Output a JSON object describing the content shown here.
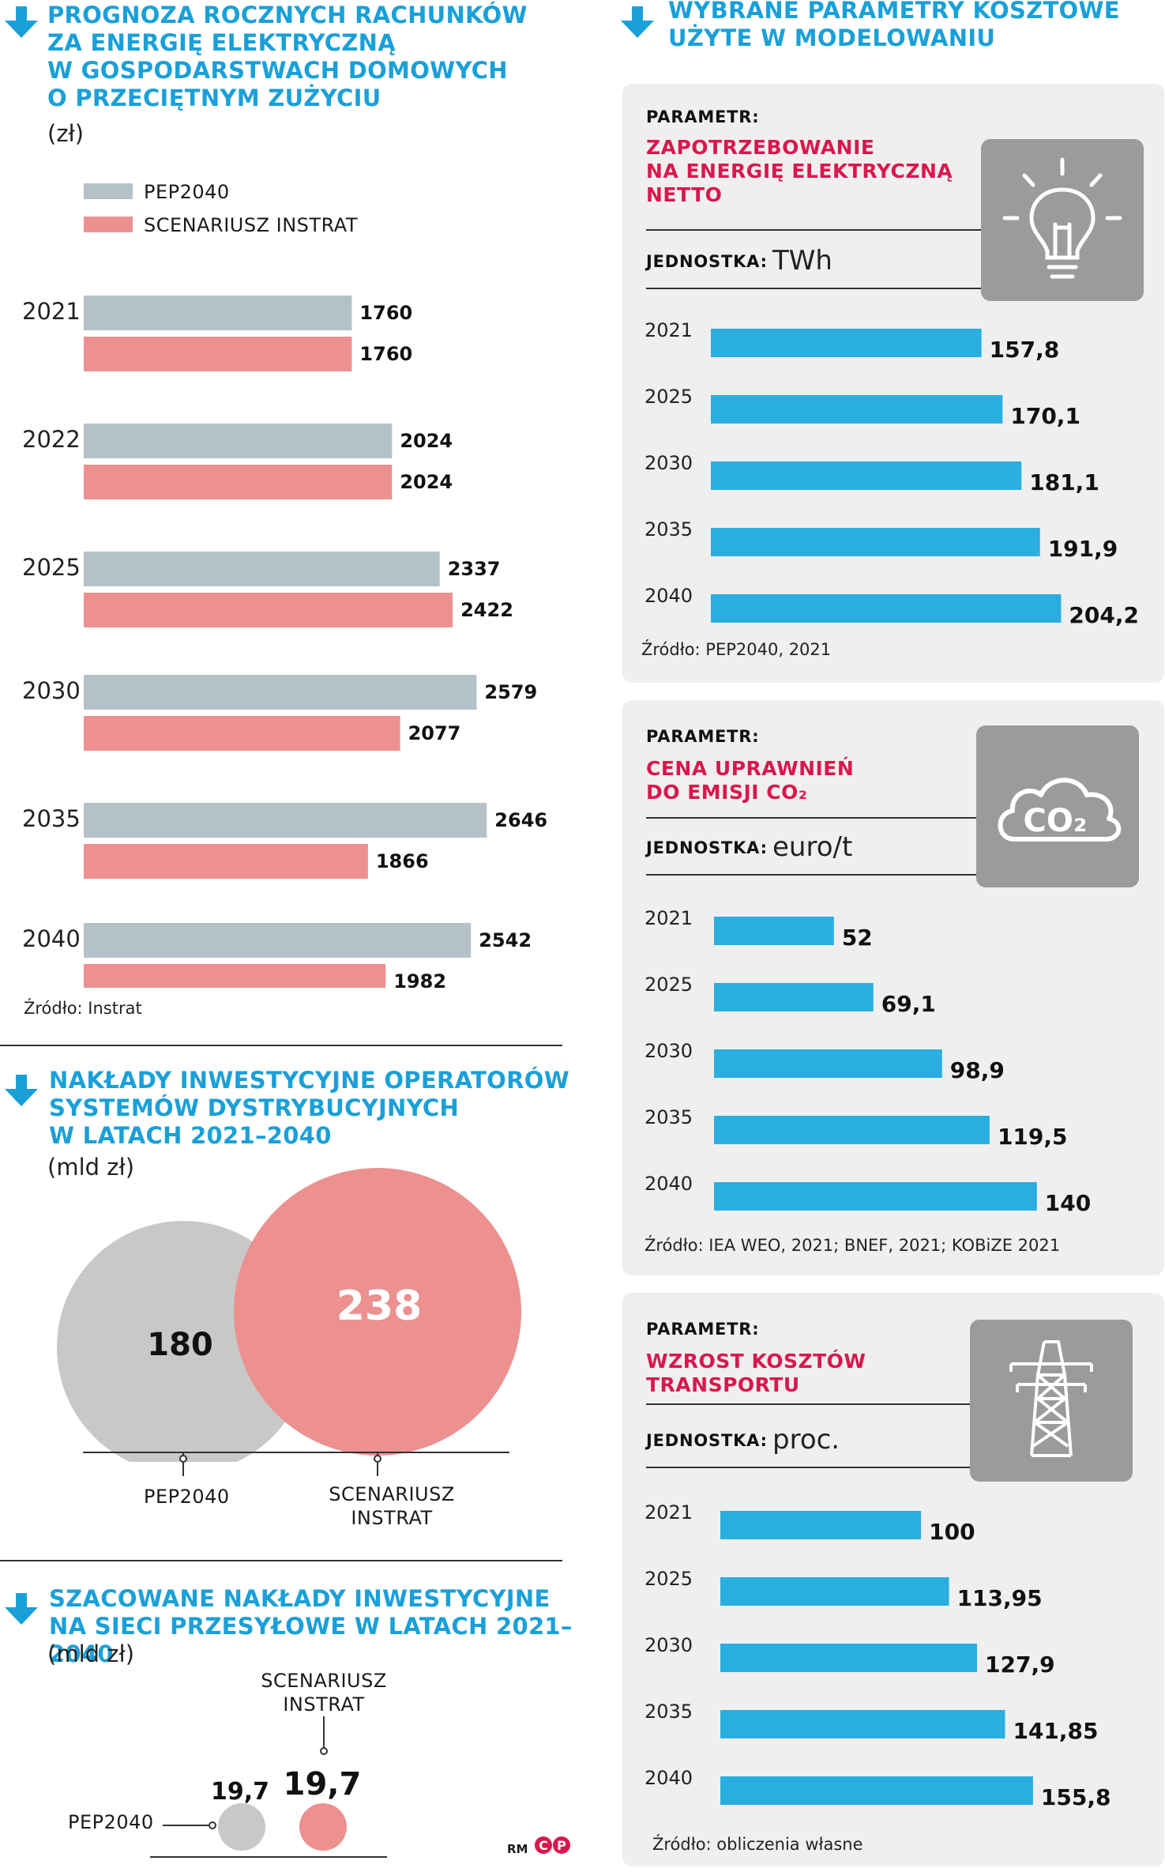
{
  "colors": {
    "pep": "#b5c1c8",
    "instrat": "#ec9090",
    "param": "#2aaee0",
    "accent": "#1aa0d8",
    "pname": "#d9174c"
  },
  "left_chart": {
    "title_lines": [
      "PROGNOZA ROCZNYCH RACHUNKÓW",
      "ZA ENERGIĘ ELEKTRYCZNĄ",
      "W GOSPODARSTWACH DOMOWYCH",
      "O PRZECIĘTNYM ZUŻYCIU"
    ],
    "unit": "(zł)",
    "legend": [
      "PEP2040",
      "SCENARIUSZ INSTRAT"
    ],
    "source": "Źródło: Instrat"
  },
  "invest_chart": {
    "title_lines": [
      "NAKŁADY INWESTYCYJNE OPERATORÓW",
      "SYSTEMÓW DYSTRYBUCYJNYCH",
      "W LATACH 2021–2040"
    ],
    "unit": "(mld zł)",
    "label_pep": "PEP2040",
    "label_instrat_lines": [
      "SCENARIUSZ",
      "INSTRAT"
    ]
  },
  "transmission_chart": {
    "title_lines": [
      "SZACOWANE NAKŁADY INWESTYCYJNE",
      "NA SIECI PRZESYŁOWE W LATACH 2021–2040"
    ],
    "unit": "(mld zł)",
    "label_instrat_lines": [
      "SCENARIUSZ",
      "INSTRAT"
    ],
    "label_pep": "PEP2040"
  },
  "right": {
    "title_lines": [
      "WYBRANE PARAMETRY KOSZTOWE",
      "UŻYTE W MODELOWANIU"
    ],
    "param_label": "PARAMETR:",
    "unit_label": "JEDNOSTKA:"
  },
  "panels": [
    {
      "name_lines": [
        "ZAPOTRZEBOWANIE",
        "NA ENERGIĘ ELEKTRYCZNĄ",
        "NETTO"
      ],
      "unit": "TWh",
      "icon": "lightbulb-icon",
      "source": "Źródło: PEP2040, 2021"
    },
    {
      "name_lines": [
        "CENA UPRAWNIEŃ",
        "DO EMISJI CO₂"
      ],
      "unit": "euro/t",
      "icon": "co2-cloud-icon",
      "icon_text": "CO₂",
      "source": "Źródło: IEA WEO, 2021; BNEF, 2021; KOBiZE 2021"
    },
    {
      "name_lines": [
        "WZROST KOSZTÓW",
        "TRANSPORTU"
      ],
      "unit": "proc.",
      "icon": "power-pylon-icon",
      "source": "Źródło: obliczenia własne"
    }
  ],
  "credit": {
    "initials": "RM",
    "logo": "CP"
  },
  "chart_data": [
    {
      "type": "bar",
      "title": "PROGNOZA ROCZNYCH RACHUNKÓW ZA ENERGIĘ ELEKTRYCZNĄ W GOSPODARSTWACH DOMOWYCH O PRZECIĘTNYM ZUŻYCIU",
      "orientation": "horizontal",
      "categories": [
        "2021",
        "2022",
        "2025",
        "2030",
        "2035",
        "2040"
      ],
      "series": [
        {
          "name": "PEP2040",
          "values": [
            1760,
            2024,
            2337,
            2579,
            2646,
            2542
          ],
          "labels": [
            "1760",
            "2024",
            "2337",
            "2579",
            "2646",
            "2542"
          ]
        },
        {
          "name": "SCENARIUSZ INSTRAT",
          "values": [
            1760,
            2024,
            2422,
            2077,
            1866,
            1982
          ],
          "labels": [
            "1760",
            "2024",
            "2422",
            "2077",
            "1866",
            "1982"
          ]
        }
      ],
      "ylabel": "(zł)",
      "xlim": [
        0,
        2800
      ]
    },
    {
      "type": "bar",
      "title": "NAKŁADY INWESTYCYJNE OPERATORÓW SYSTEMÓW DYSTRYBUCYJNYCH W LATACH 2021–2040",
      "categories": [
        "PEP2040",
        "SCENARIUSZ INSTRAT"
      ],
      "values": [
        180,
        238
      ],
      "labels": [
        "180",
        "238"
      ],
      "ylabel": "(mld zł)"
    },
    {
      "type": "bar",
      "title": "SZACOWANE NAKŁADY INWESTYCYJNE NA SIECI PRZESYŁOWE W LATACH 2021–2040",
      "categories": [
        "PEP2040",
        "SCENARIUSZ INSTRAT"
      ],
      "values": [
        19.7,
        19.7
      ],
      "labels": [
        "19,7",
        "19,7"
      ],
      "ylabel": "(mld zł)"
    },
    {
      "type": "bar",
      "title": "ZAPOTRZEBOWANIE NA ENERGIĘ ELEKTRYCZNĄ NETTO",
      "orientation": "horizontal",
      "categories": [
        "2021",
        "2025",
        "2030",
        "2035",
        "2040"
      ],
      "values": [
        157.8,
        170.1,
        181.1,
        191.9,
        204.2
      ],
      "labels": [
        "157,8",
        "170,1",
        "181,1",
        "191,9",
        "204,2"
      ],
      "unit": "TWh"
    },
    {
      "type": "bar",
      "title": "CENA UPRAWNIEŃ DO EMISJI CO₂",
      "orientation": "horizontal",
      "categories": [
        "2021",
        "2025",
        "2030",
        "2035",
        "2040"
      ],
      "values": [
        52,
        69.1,
        98.9,
        119.5,
        140
      ],
      "labels": [
        "52",
        "69,1",
        "98,9",
        "119,5",
        "140"
      ],
      "unit": "euro/t"
    },
    {
      "type": "bar",
      "title": "WZROST KOSZTÓW TRANSPORTU",
      "orientation": "horizontal",
      "categories": [
        "2021",
        "2025",
        "2030",
        "2035",
        "2040"
      ],
      "values": [
        100,
        113.95,
        127.9,
        141.85,
        155.8
      ],
      "labels": [
        "100",
        "113,95",
        "127,9",
        "141,85",
        "155,8"
      ],
      "unit": "proc."
    }
  ]
}
